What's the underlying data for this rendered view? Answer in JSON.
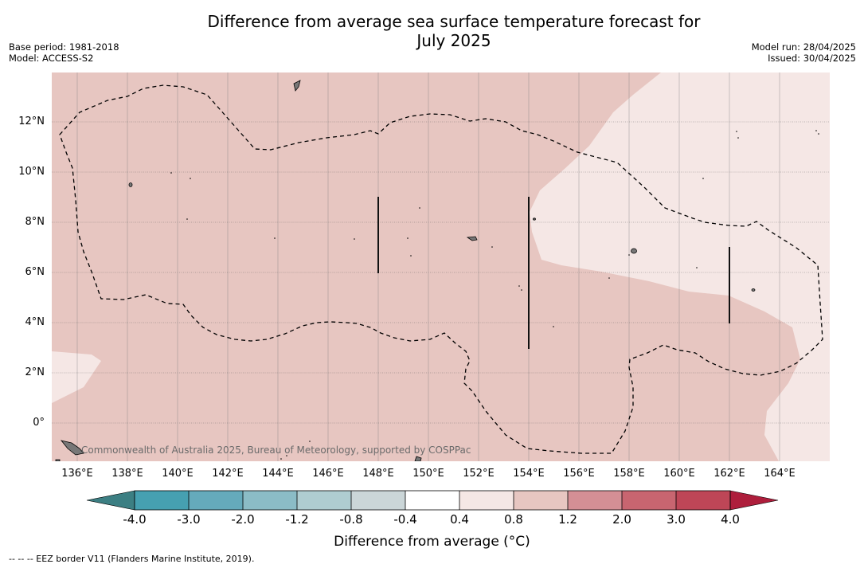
{
  "header": {
    "title_line1": "Difference from average sea surface temperature forecast for",
    "title_line2": "July 2025",
    "base_period": "Base period: 1981-2018",
    "model": "Model: ACCESS-S2",
    "model_run": "Model run: 28/04/2025",
    "issued": "Issued: 30/04/2025"
  },
  "map": {
    "lat_labels": [
      "12°N",
      "10°N",
      "8°N",
      "6°N",
      "4°N",
      "2°N",
      "0°"
    ],
    "lon_labels": [
      "136°E",
      "138°E",
      "140°E",
      "142°E",
      "144°E",
      "146°E",
      "148°E",
      "150°E",
      "152°E",
      "154°E",
      "156°E",
      "158°E",
      "160°E",
      "162°E",
      "164°E"
    ],
    "copyright": "Commonwealth of Australia 2025, Bureau of Meteorology, supported by COSPPac",
    "colors": {
      "warm_0_4_0_8": "#f5e7e5",
      "warm_0_8_1_2": "#e7c6c1",
      "grid": "#555555"
    }
  },
  "colorbar": {
    "ticks": [
      "-4.0",
      "-3.0",
      "-2.0",
      "-1.2",
      "-0.8",
      "-0.4",
      "0.4",
      "0.8",
      "1.2",
      "2.0",
      "3.0",
      "4.0"
    ],
    "colors": [
      "#46a0b1",
      "#65aabb",
      "#8bbcc6",
      "#afcdd1",
      "#cbd6d8",
      "#ffffff",
      "#f5e7e5",
      "#e7c6c1",
      "#d48f95",
      "#c86570",
      "#be4657"
    ],
    "under_color": "#3c7f83",
    "over_color": "#ae1e3c",
    "label": "Difference from average (°C)"
  },
  "footnote": "--  --  -- EEZ border V11 (Flanders Marine Institute, 2019)."
}
